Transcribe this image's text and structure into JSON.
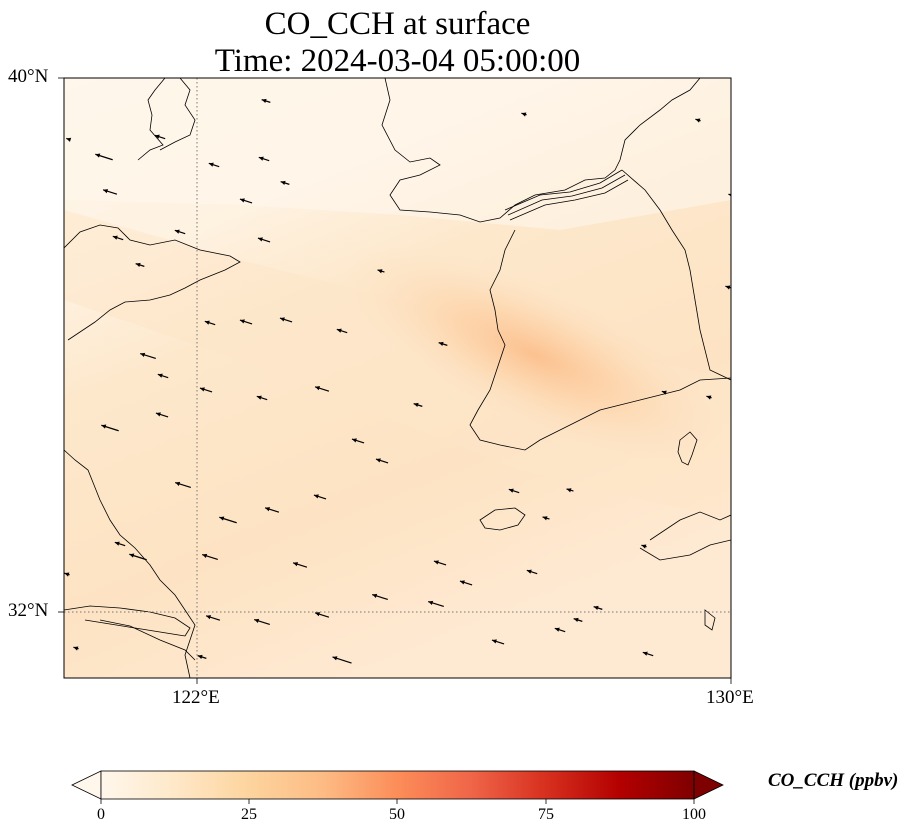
{
  "map": {
    "title_line1": "CO_CCH at surface",
    "title_line2": "Time: 2024-03-04 05:00:00",
    "variable": "CO_CCH",
    "units": "ppbv",
    "lon_range": [
      120,
      130
    ],
    "lat_range": [
      31,
      40
    ],
    "lat_ticks": [
      "40°N",
      "32°N"
    ],
    "lon_ticks": [
      "122°E",
      "130°E"
    ],
    "gridlines": {
      "lon": 122,
      "lat": 32,
      "style": "dotted"
    },
    "colormap": "OrRd",
    "colorbar": {
      "label": "CO_CCH (ppbv)",
      "ticks": [
        "0",
        "25",
        "50",
        "75",
        "100"
      ],
      "min": 0,
      "max": 100,
      "extend": "both",
      "colors": [
        "#fff7ec",
        "#fee8c8",
        "#fdd49e",
        "#fdbb84",
        "#fc8d59",
        "#ef6548",
        "#d7301f",
        "#b30000",
        "#7f0000"
      ]
    },
    "plume_max_location": "Korean west coast",
    "plume_peak_ppbv": 22,
    "wind_direction": "northwest"
  }
}
